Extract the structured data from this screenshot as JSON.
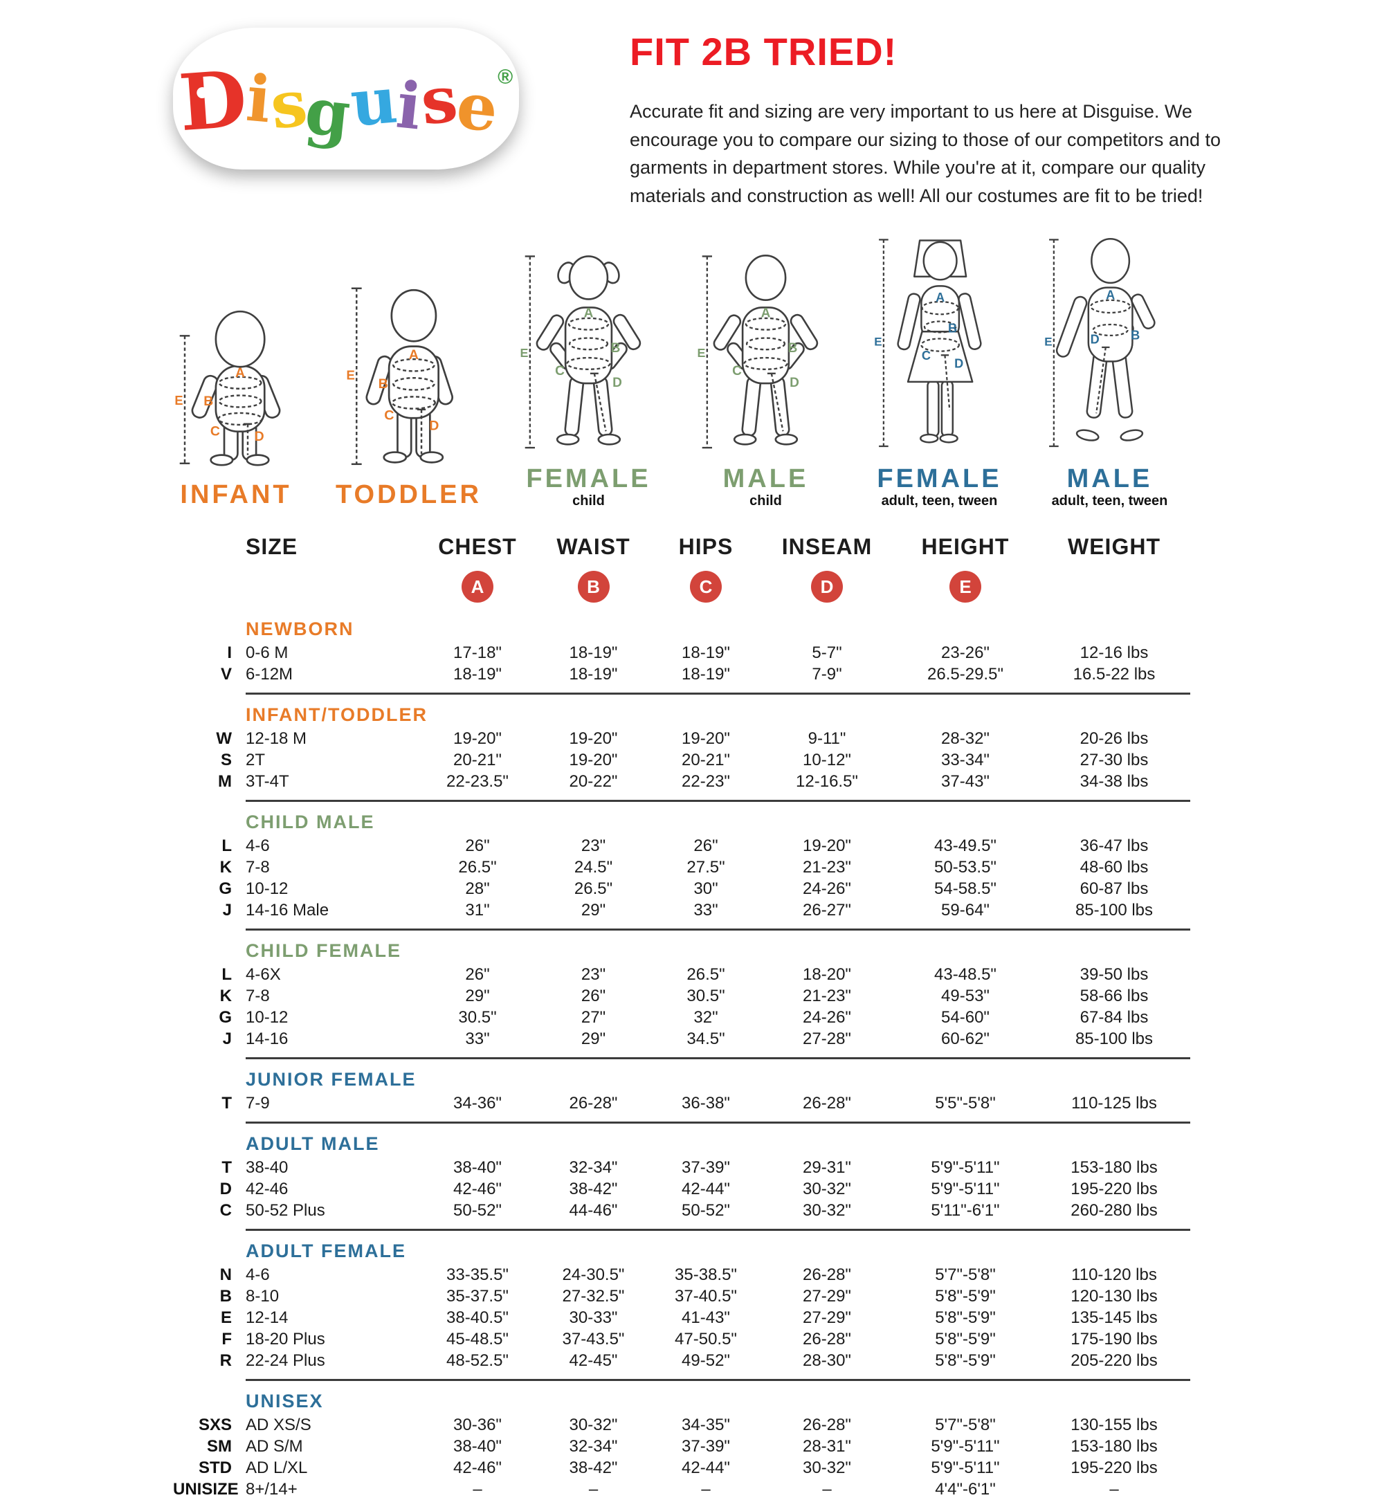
{
  "theme": {
    "title_red": "#ec1c24",
    "badge_red": "#d2443b",
    "divider": "#3c3c3c",
    "orange": "#e87b28",
    "green": "#7d9e70",
    "blue": "#2d6f99"
  },
  "logo": {
    "letters": [
      {
        "ch": "D",
        "color": "#e63329"
      },
      {
        "ch": "i",
        "color": "#f0952d"
      },
      {
        "ch": "s",
        "color": "#f6c51f"
      },
      {
        "ch": "g",
        "color": "#43a047"
      },
      {
        "ch": "u",
        "color": "#35a8e0"
      },
      {
        "ch": "i",
        "color": "#8a63ac"
      },
      {
        "ch": "s",
        "color": "#e63329"
      },
      {
        "ch": "e",
        "color": "#f0932b"
      }
    ],
    "reg": "®",
    "reg_color": "#43a047"
  },
  "header": {
    "title": "FIT 2B TRIED!",
    "paragraph": "Accurate fit and sizing are very important to us here at Disguise. We encourage you to compare our sizing to those of our competitors and to garments in department stores. While you're at it, compare our quality materials and construction as well! All our costumes are fit to be tried!"
  },
  "figures": [
    {
      "id": "infant",
      "label": "INFANT",
      "sublabel": "",
      "color": "#e87b28",
      "letters": [
        "A",
        "B",
        "C",
        "D",
        "E"
      ]
    },
    {
      "id": "toddler",
      "label": "TODDLER",
      "sublabel": "",
      "color": "#e87b28",
      "letters": [
        "A",
        "B",
        "C",
        "D",
        "E"
      ]
    },
    {
      "id": "child-female",
      "label": "FEMALE",
      "sublabel": "child",
      "color": "#7d9e70",
      "letters": [
        "A",
        "B",
        "C",
        "D",
        "E"
      ]
    },
    {
      "id": "child-male",
      "label": "MALE",
      "sublabel": "child",
      "color": "#7d9e70",
      "letters": [
        "A",
        "B",
        "C",
        "D",
        "E"
      ]
    },
    {
      "id": "adult-female",
      "label": "FEMALE",
      "sublabel": "adult, teen, tween",
      "color": "#2d6f99",
      "letters": [
        "A",
        "B",
        "C",
        "D",
        "E"
      ]
    },
    {
      "id": "adult-male",
      "label": "MALE",
      "sublabel": "adult, teen, tween",
      "color": "#2d6f99",
      "letters": [
        "A",
        "B",
        "D",
        "E"
      ]
    }
  ],
  "table": {
    "columns": [
      "SIZE",
      "CHEST",
      "WAIST",
      "HIPS",
      "INSEAM",
      "HEIGHT",
      "WEIGHT"
    ],
    "measure_badges": [
      "A",
      "B",
      "C",
      "D",
      "E"
    ],
    "sections": [
      {
        "name": "NEWBORN",
        "color": "#e87b28",
        "divider": true,
        "rows": [
          {
            "code": "I",
            "size": "0-6 M",
            "values": [
              "17-18\"",
              "18-19\"",
              "18-19\"",
              "5-7\"",
              "23-26\"",
              "12-16 lbs"
            ]
          },
          {
            "code": "V",
            "size": "6-12M",
            "values": [
              "18-19\"",
              "18-19\"",
              "18-19\"",
              "7-9\"",
              "26.5-29.5\"",
              "16.5-22 lbs"
            ]
          }
        ]
      },
      {
        "name": "INFANT/TODDLER",
        "color": "#e87b28",
        "divider": true,
        "rows": [
          {
            "code": "W",
            "size": "12-18 M",
            "values": [
              "19-20\"",
              "19-20\"",
              "19-20\"",
              "9-11\"",
              "28-32\"",
              "20-26 lbs"
            ]
          },
          {
            "code": "S",
            "size": "2T",
            "values": [
              "20-21\"",
              "19-20\"",
              "20-21\"",
              "10-12\"",
              "33-34\"",
              "27-30 lbs"
            ]
          },
          {
            "code": "M",
            "size": "3T-4T",
            "values": [
              "22-23.5\"",
              "20-22\"",
              "22-23\"",
              "12-16.5\"",
              "37-43\"",
              "34-38 lbs"
            ]
          }
        ]
      },
      {
        "name": "CHILD MALE",
        "color": "#7d9e70",
        "divider": true,
        "rows": [
          {
            "code": "L",
            "size": "4-6",
            "values": [
              "26\"",
              "23\"",
              "26\"",
              "19-20\"",
              "43-49.5\"",
              "36-47 lbs"
            ]
          },
          {
            "code": "K",
            "size": "7-8",
            "values": [
              "26.5\"",
              "24.5\"",
              "27.5\"",
              "21-23\"",
              "50-53.5\"",
              "48-60 lbs"
            ]
          },
          {
            "code": "G",
            "size": "10-12",
            "values": [
              "28\"",
              "26.5\"",
              "30\"",
              "24-26\"",
              "54-58.5\"",
              "60-87 lbs"
            ]
          },
          {
            "code": "J",
            "size": "14-16 Male",
            "values": [
              "31\"",
              "29\"",
              "33\"",
              "26-27\"",
              "59-64\"",
              "85-100 lbs"
            ]
          }
        ]
      },
      {
        "name": "CHILD FEMALE",
        "color": "#7d9e70",
        "divider": true,
        "rows": [
          {
            "code": "L",
            "size": "4-6X",
            "values": [
              "26\"",
              "23\"",
              "26.5\"",
              "18-20\"",
              "43-48.5\"",
              "39-50 lbs"
            ]
          },
          {
            "code": "K",
            "size": "7-8",
            "values": [
              "29\"",
              "26\"",
              "30.5\"",
              "21-23\"",
              "49-53\"",
              "58-66 lbs"
            ]
          },
          {
            "code": "G",
            "size": "10-12",
            "values": [
              "30.5\"",
              "27\"",
              "32\"",
              "24-26\"",
              "54-60\"",
              "67-84 lbs"
            ]
          },
          {
            "code": "J",
            "size": "14-16",
            "values": [
              "33\"",
              "29\"",
              "34.5\"",
              "27-28\"",
              "60-62\"",
              "85-100 lbs"
            ]
          }
        ]
      },
      {
        "name": "JUNIOR FEMALE",
        "color": "#2d6f99",
        "divider": true,
        "rows": [
          {
            "code": "T",
            "size": "7-9",
            "values": [
              "34-36\"",
              "26-28\"",
              "36-38\"",
              "26-28\"",
              "5'5\"-5'8\"",
              "110-125 lbs"
            ]
          }
        ]
      },
      {
        "name": "ADULT MALE",
        "color": "#2d6f99",
        "divider": true,
        "rows": [
          {
            "code": "T",
            "size": "38-40",
            "values": [
              "38-40\"",
              "32-34\"",
              "37-39\"",
              "29-31\"",
              "5'9\"-5'11\"",
              "153-180 lbs"
            ]
          },
          {
            "code": "D",
            "size": "42-46",
            "values": [
              "42-46\"",
              "38-42\"",
              "42-44\"",
              "30-32\"",
              "5'9\"-5'11\"",
              "195-220 lbs"
            ]
          },
          {
            "code": "C",
            "size": "50-52 Plus",
            "values": [
              "50-52\"",
              "44-46\"",
              "50-52\"",
              "30-32\"",
              "5'11\"-6'1\"",
              "260-280 lbs"
            ]
          }
        ]
      },
      {
        "name": "ADULT FEMALE",
        "color": "#2d6f99",
        "divider": true,
        "rows": [
          {
            "code": "N",
            "size": "4-6",
            "values": [
              "33-35.5\"",
              "24-30.5\"",
              "35-38.5\"",
              "26-28\"",
              "5'7\"-5'8\"",
              "110-120 lbs"
            ]
          },
          {
            "code": "B",
            "size": "8-10",
            "values": [
              "35-37.5\"",
              "27-32.5\"",
              "37-40.5\"",
              "27-29\"",
              "5'8\"-5'9\"",
              "120-130 lbs"
            ]
          },
          {
            "code": "E",
            "size": "12-14",
            "values": [
              "38-40.5\"",
              "30-33\"",
              "41-43\"",
              "27-29\"",
              "5'8\"-5'9\"",
              "135-145 lbs"
            ]
          },
          {
            "code": "F",
            "size": "18-20 Plus",
            "values": [
              "45-48.5\"",
              "37-43.5\"",
              "47-50.5\"",
              "26-28\"",
              "5'8\"-5'9\"",
              "175-190 lbs"
            ]
          },
          {
            "code": "R",
            "size": "22-24 Plus",
            "values": [
              "48-52.5\"",
              "42-45\"",
              "49-52\"",
              "28-30\"",
              "5'8\"-5'9\"",
              "205-220 lbs"
            ]
          }
        ]
      },
      {
        "name": "UNISEX",
        "color": "#2d6f99",
        "divider": false,
        "rows": [
          {
            "code": "SXS",
            "size": "AD XS/S",
            "values": [
              "30-36\"",
              "30-32\"",
              "34-35\"",
              "26-28\"",
              "5'7\"-5'8\"",
              "130-155 lbs"
            ]
          },
          {
            "code": "SM",
            "size": "AD S/M",
            "values": [
              "38-40\"",
              "32-34\"",
              "37-39\"",
              "28-31\"",
              "5'9\"-5'11\"",
              "153-180 lbs"
            ]
          },
          {
            "code": "STD",
            "size": "AD L/XL",
            "values": [
              "42-46\"",
              "38-42\"",
              "42-44\"",
              "30-32\"",
              "5'9\"-5'11\"",
              "195-220 lbs"
            ]
          },
          {
            "code": "UNISIZE",
            "size": "8+/14+",
            "values": [
              "–",
              "–",
              "–",
              "–",
              "4'4\"-6'1\"",
              "–"
            ]
          }
        ]
      }
    ]
  }
}
